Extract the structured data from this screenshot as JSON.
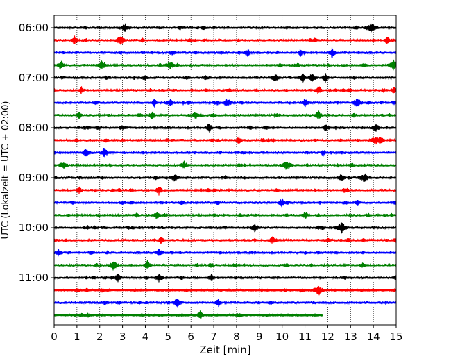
{
  "chart_data": {
    "type": "line",
    "title": "",
    "xlabel": "Zeit  [min]",
    "ylabel": "UTC (Lokalzeit = UTC + 02:00)",
    "xlim": [
      0,
      15
    ],
    "x_ticks": [
      "0",
      "1",
      "2",
      "3",
      "4",
      "5",
      "6",
      "7",
      "8",
      "9",
      "10",
      "11",
      "12",
      "13",
      "14",
      "15"
    ],
    "y_ticks": [
      "06:00",
      "07:00",
      "08:00",
      "09:00",
      "10:00",
      "11:00"
    ],
    "trace_interval_minutes": 15,
    "start_time": "06:00",
    "trace_colors": [
      "#000000",
      "#ff0000",
      "#0000ff",
      "#008000"
    ],
    "grid": "vertical dotted lines at each minute",
    "traces": [
      {
        "time": "06:00",
        "color": "#000000",
        "end_min": 15,
        "events": [
          3.1,
          13.9
        ]
      },
      {
        "time": "06:15",
        "color": "#ff0000",
        "end_min": 15,
        "events": [
          0.9,
          2.9,
          14.6
        ]
      },
      {
        "time": "06:30",
        "color": "#0000ff",
        "end_min": 15,
        "events": [
          8.5,
          10.8,
          12.2
        ]
      },
      {
        "time": "06:45",
        "color": "#008000",
        "end_min": 15,
        "events": [
          0.3,
          2.1,
          5.1,
          14.9
        ]
      },
      {
        "time": "07:00",
        "color": "#000000",
        "end_min": 15,
        "events": [
          9.7,
          10.9,
          11.3,
          11.9
        ]
      },
      {
        "time": "07:15",
        "color": "#ff0000",
        "end_min": 15,
        "events": [
          1.2,
          11.6,
          14.9
        ]
      },
      {
        "time": "07:30",
        "color": "#0000ff",
        "end_min": 15,
        "events": [
          4.4,
          5.1,
          7.6,
          11.0,
          13.3
        ]
      },
      {
        "time": "07:45",
        "color": "#008000",
        "end_min": 15,
        "events": [
          1.1,
          4.3,
          6.2,
          11.6
        ]
      },
      {
        "time": "08:00",
        "color": "#000000",
        "end_min": 15,
        "events": [
          6.8,
          11.9,
          14.1
        ]
      },
      {
        "time": "08:15",
        "color": "#ff0000",
        "end_min": 15,
        "events": [
          8.1,
          14.1,
          14.3
        ]
      },
      {
        "time": "08:30",
        "color": "#0000ff",
        "end_min": 15,
        "events": [
          1.4,
          2.2,
          11.8
        ]
      },
      {
        "time": "08:45",
        "color": "#008000",
        "end_min": 15,
        "events": [
          0.4,
          5.7,
          10.2
        ]
      },
      {
        "time": "09:00",
        "color": "#000000",
        "end_min": 15,
        "events": [
          5.3,
          12.6,
          13.6
        ]
      },
      {
        "time": "09:15",
        "color": "#ff0000",
        "end_min": 15,
        "events": [
          1.1,
          4.6
        ]
      },
      {
        "time": "09:30",
        "color": "#0000ff",
        "end_min": 15,
        "events": [
          10.0,
          13.3
        ]
      },
      {
        "time": "09:45",
        "color": "#008000",
        "end_min": 15,
        "events": [
          4.5,
          11.0
        ]
      },
      {
        "time": "10:00",
        "color": "#000000",
        "end_min": 15,
        "events": [
          8.8,
          12.6
        ]
      },
      {
        "time": "10:15",
        "color": "#ff0000",
        "end_min": 15,
        "events": [
          4.7,
          9.6
        ]
      },
      {
        "time": "10:30",
        "color": "#0000ff",
        "end_min": 15,
        "events": [
          0.2,
          4.6
        ]
      },
      {
        "time": "10:45",
        "color": "#008000",
        "end_min": 15,
        "events": [
          2.6,
          4.1
        ]
      },
      {
        "time": "11:00",
        "color": "#000000",
        "end_min": 15,
        "events": [
          2.8,
          4.6,
          6.9
        ]
      },
      {
        "time": "11:15",
        "color": "#ff0000",
        "end_min": 15,
        "events": [
          11.6
        ]
      },
      {
        "time": "11:30",
        "color": "#0000ff",
        "end_min": 15,
        "events": [
          5.4,
          7.2
        ]
      },
      {
        "time": "11:45",
        "color": "#008000",
        "end_min": 11.8,
        "events": [
          6.4
        ]
      }
    ]
  }
}
